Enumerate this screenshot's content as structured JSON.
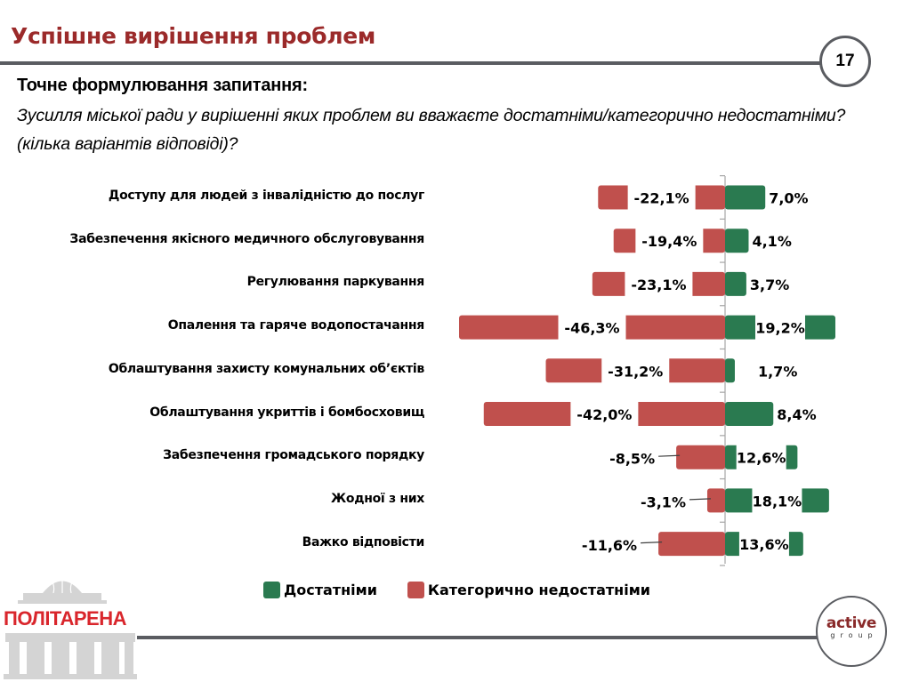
{
  "header": {
    "title": "Успішне вирішення проблем",
    "page_number": "17"
  },
  "question": {
    "heading": "Точне формулювання запитання:",
    "text": "Зусилля міської ради у вирішенні яких проблем ви вважаєте достатніми/категорично недостатніми? (кілька варіантів відповіді)?"
  },
  "colors": {
    "title": "#9b2a2a",
    "positive": "#2a7a50",
    "negative": "#c0504d",
    "rule": "#5a5c61"
  },
  "chart_data": {
    "type": "bar",
    "orientation": "horizontal-diverging",
    "title": "",
    "xlabel": "",
    "ylabel": "",
    "xlim": [
      -50,
      25
    ],
    "grid": false,
    "legend_position": "bottom",
    "categories": [
      "Доступу для людей з інвалідністю до послуг",
      "Забезпечення якісного медичного обслуговування",
      "Регулювання паркування",
      "Опалення та гаряче водопостачання",
      "Облаштування захисту комунальних об’єктів",
      "Облаштування укриттів і бомбосховищ",
      "Забезпечення громадського порядку",
      "Жодної з них",
      "Важко відповісти"
    ],
    "series": [
      {
        "name": "Достатніми",
        "color": "#2a7a50",
        "values": [
          7.0,
          4.1,
          3.7,
          19.2,
          1.7,
          8.4,
          12.6,
          18.1,
          13.6
        ],
        "labels": [
          "7,0%",
          "4,1%",
          "3,7%",
          "19,2%",
          "1,7%",
          "8,4%",
          "12,6%",
          "18,1%",
          "13,6%"
        ]
      },
      {
        "name": "Категорично недостатніми",
        "color": "#c0504d",
        "values": [
          -22.1,
          -19.4,
          -23.1,
          -46.3,
          -31.2,
          -42.0,
          -8.5,
          -3.1,
          -11.6
        ],
        "labels": [
          "-22,1%",
          "-19,4%",
          "-23,1%",
          "-46,3%",
          "-31,2%",
          "-42,0%",
          "-8,5%",
          "-3,1%",
          "-11,6%"
        ]
      }
    ]
  },
  "legend": {
    "items": [
      {
        "label": "Достатніми"
      },
      {
        "label": "Категорично недостатніми"
      }
    ]
  },
  "footer": {
    "left_logo_text": "ПОЛІТАРЕНА",
    "right_logo_main": "active",
    "right_logo_sub": "group"
  }
}
